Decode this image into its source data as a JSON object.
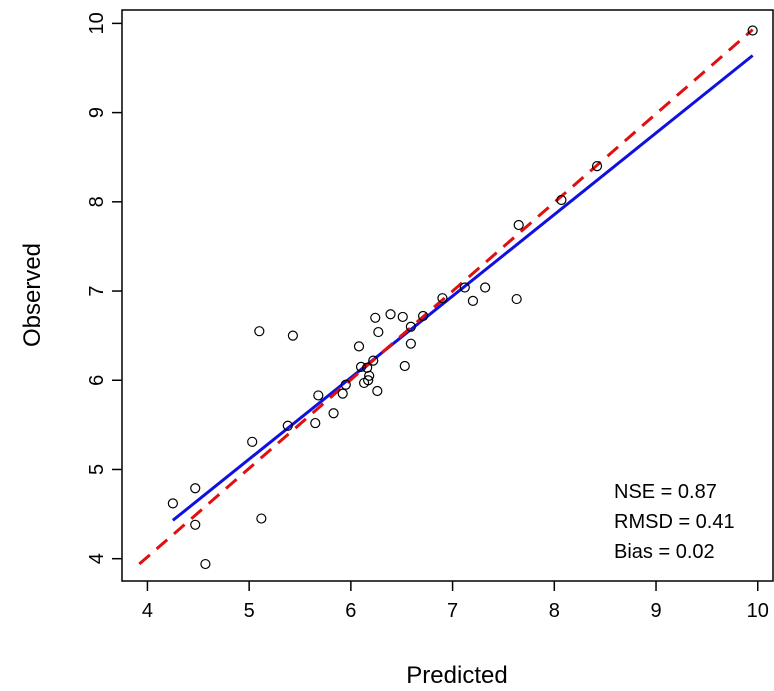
{
  "chart_data": {
    "type": "scatter",
    "title": "",
    "xlabel": "Predicted",
    "ylabel": "Observed",
    "xlim": [
      3.75,
      10.15
    ],
    "ylim": [
      3.75,
      10.15
    ],
    "xticks": [
      "4",
      "5",
      "6",
      "7",
      "8",
      "9",
      "10"
    ],
    "yticks": [
      "4",
      "5",
      "6",
      "7",
      "8",
      "9",
      "10"
    ],
    "grid": false,
    "points": [
      {
        "x": 4.25,
        "y": 4.62
      },
      {
        "x": 4.47,
        "y": 4.79
      },
      {
        "x": 4.47,
        "y": 4.38
      },
      {
        "x": 4.57,
        "y": 3.94
      },
      {
        "x": 5.03,
        "y": 5.31
      },
      {
        "x": 5.1,
        "y": 6.55
      },
      {
        "x": 5.12,
        "y": 4.45
      },
      {
        "x": 5.38,
        "y": 5.49
      },
      {
        "x": 5.43,
        "y": 6.5
      },
      {
        "x": 5.65,
        "y": 5.52
      },
      {
        "x": 5.68,
        "y": 5.83
      },
      {
        "x": 5.83,
        "y": 5.63
      },
      {
        "x": 5.92,
        "y": 5.85
      },
      {
        "x": 5.95,
        "y": 5.95
      },
      {
        "x": 6.08,
        "y": 6.38
      },
      {
        "x": 6.1,
        "y": 6.15
      },
      {
        "x": 6.13,
        "y": 5.97
      },
      {
        "x": 6.16,
        "y": 6.14
      },
      {
        "x": 6.17,
        "y": 6.0
      },
      {
        "x": 6.18,
        "y": 6.05
      },
      {
        "x": 6.22,
        "y": 6.22
      },
      {
        "x": 6.24,
        "y": 6.7
      },
      {
        "x": 6.26,
        "y": 5.88
      },
      {
        "x": 6.27,
        "y": 6.54
      },
      {
        "x": 6.39,
        "y": 6.74
      },
      {
        "x": 6.51,
        "y": 6.71
      },
      {
        "x": 6.53,
        "y": 6.16
      },
      {
        "x": 6.59,
        "y": 6.41
      },
      {
        "x": 6.59,
        "y": 6.6
      },
      {
        "x": 6.71,
        "y": 6.72
      },
      {
        "x": 6.9,
        "y": 6.92
      },
      {
        "x": 7.12,
        "y": 7.04
      },
      {
        "x": 7.2,
        "y": 6.89
      },
      {
        "x": 7.32,
        "y": 7.04
      },
      {
        "x": 7.63,
        "y": 6.91
      },
      {
        "x": 7.65,
        "y": 7.74
      },
      {
        "x": 8.07,
        "y": 8.02
      },
      {
        "x": 8.42,
        "y": 8.4
      },
      {
        "x": 9.95,
        "y": 9.92
      }
    ],
    "lines": [
      {
        "style": "solid",
        "color": "#1010e0",
        "from": {
          "x": 4.25,
          "y": 4.43
        },
        "to": {
          "x": 9.95,
          "y": 9.64
        }
      },
      {
        "style": "dashed",
        "color": "#e01010",
        "from": {
          "x": 3.92,
          "y": 3.94
        },
        "to": {
          "x": 9.95,
          "y": 9.93
        }
      }
    ],
    "annotations": [
      "NSE =  0.87",
      "RMSD = 0.41",
      "Bias = 0.02"
    ]
  }
}
